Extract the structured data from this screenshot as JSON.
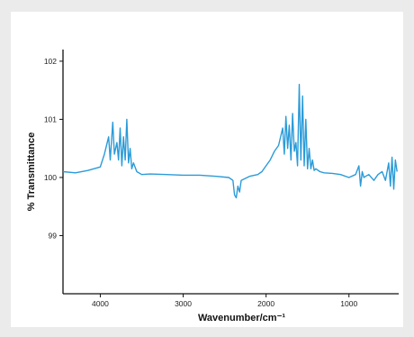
{
  "chart_data": {
    "type": "line",
    "title": "",
    "xlabel": "Wavenumber/cm⁻¹",
    "ylabel": "% Transmittance",
    "xlim": [
      4450,
      400
    ],
    "ylim": [
      98.0,
      102.2
    ],
    "x_reversed": true,
    "grid": false,
    "legend": "none",
    "line_color": "#2b9bd8",
    "x_ticks": [
      4000,
      3000,
      2000,
      1000
    ],
    "x_tick_labels": [
      "4000",
      "3000",
      "2000",
      "1000"
    ],
    "y_ticks": [
      99,
      100,
      101,
      102
    ],
    "y_tick_labels": [
      "99",
      "100",
      "101",
      "102"
    ],
    "series": [
      {
        "x": [
          4450,
          4300,
          4150,
          4000,
          3950,
          3900,
          3880,
          3850,
          3830,
          3800,
          3780,
          3760,
          3740,
          3720,
          3700,
          3680,
          3660,
          3640,
          3620,
          3600,
          3560,
          3500,
          3400,
          3200,
          3000,
          2800,
          2600,
          2450,
          2400,
          2380,
          2360,
          2340,
          2320,
          2300,
          2200,
          2100,
          2050,
          2000,
          1950,
          1900,
          1850,
          1800,
          1780,
          1760,
          1740,
          1720,
          1700,
          1680,
          1660,
          1640,
          1620,
          1600,
          1580,
          1560,
          1540,
          1520,
          1500,
          1480,
          1460,
          1440,
          1420,
          1400,
          1350,
          1300,
          1200,
          1100,
          1000,
          920,
          880,
          860,
          840,
          820,
          800,
          760,
          700,
          650,
          600,
          560,
          520,
          500,
          480,
          460,
          440,
          420
        ],
        "values": [
          100.1,
          100.08,
          100.12,
          100.18,
          100.4,
          100.7,
          100.3,
          100.95,
          100.4,
          100.6,
          100.3,
          100.85,
          100.2,
          100.7,
          100.3,
          101.0,
          100.25,
          100.5,
          100.15,
          100.25,
          100.1,
          100.05,
          100.06,
          100.05,
          100.04,
          100.04,
          100.02,
          100.0,
          99.95,
          99.7,
          99.65,
          99.85,
          99.75,
          99.95,
          100.02,
          100.05,
          100.1,
          100.2,
          100.3,
          100.45,
          100.55,
          100.85,
          100.4,
          101.05,
          100.5,
          100.9,
          100.3,
          101.1,
          100.45,
          100.6,
          100.2,
          101.6,
          100.3,
          101.4,
          100.2,
          101.0,
          100.15,
          100.5,
          100.15,
          100.3,
          100.12,
          100.15,
          100.1,
          100.08,
          100.07,
          100.05,
          100.0,
          100.05,
          100.2,
          99.85,
          100.1,
          100.0,
          100.02,
          100.05,
          99.95,
          100.05,
          100.1,
          99.95,
          100.25,
          99.85,
          100.35,
          99.8,
          100.3,
          100.1
        ]
      }
    ]
  }
}
